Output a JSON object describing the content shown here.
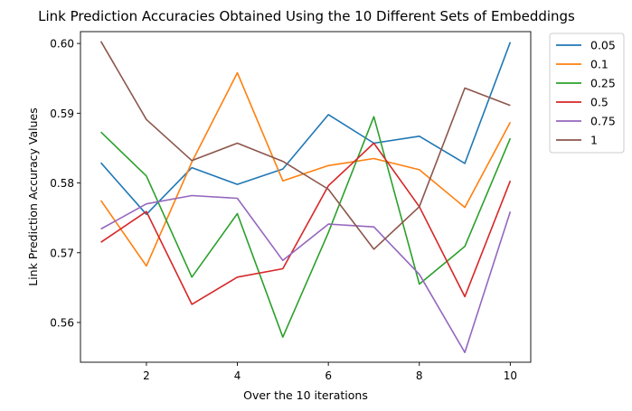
{
  "chart_data": {
    "type": "line",
    "title": "Link Prediction Accuracies Obtained Using the 10 Different Sets of Embeddings",
    "xlabel": "Over the 10 iterations",
    "ylabel": "Link Prediction Accuracy Values",
    "x": [
      1,
      2,
      3,
      4,
      5,
      6,
      7,
      8,
      9,
      10
    ],
    "xlim": [
      0.55,
      10.45
    ],
    "ylim": [
      0.5543,
      0.6017
    ],
    "x_ticks": [
      "2",
      "4",
      "6",
      "8",
      "10"
    ],
    "y_ticks": [
      "0.56",
      "0.57",
      "0.58",
      "0.59",
      "0.60"
    ],
    "grid": false,
    "legend_position": "outside-top-right",
    "series": [
      {
        "name": "0.05",
        "color": "#1f77b4",
        "values": [
          0.5829,
          0.5755,
          0.5822,
          0.5798,
          0.582,
          0.5898,
          0.5857,
          0.5867,
          0.5828,
          0.6002
        ]
      },
      {
        "name": "0.1",
        "color": "#ff7f0e",
        "values": [
          0.5775,
          0.5681,
          0.583,
          0.5958,
          0.5803,
          0.5825,
          0.5835,
          0.5819,
          0.5765,
          0.5887
        ]
      },
      {
        "name": "0.25",
        "color": "#2ca02c",
        "values": [
          0.5873,
          0.581,
          0.5665,
          0.5756,
          0.5579,
          0.5729,
          0.5895,
          0.5655,
          0.5709,
          0.5864
        ]
      },
      {
        "name": "0.5",
        "color": "#d62728",
        "values": [
          0.5715,
          0.5759,
          0.5626,
          0.5665,
          0.5677,
          0.5796,
          0.5857,
          0.5766,
          0.5637,
          0.5803
        ]
      },
      {
        "name": "0.75",
        "color": "#9467bd",
        "values": [
          0.5734,
          0.577,
          0.5782,
          0.5778,
          0.5689,
          0.5741,
          0.5737,
          0.5669,
          0.5557,
          0.5759
        ]
      },
      {
        "name": "1",
        "color": "#8c564b",
        "values": [
          0.6003,
          0.5891,
          0.5832,
          0.5857,
          0.5831,
          0.5791,
          0.5705,
          0.5766,
          0.5936,
          0.5911
        ]
      }
    ]
  }
}
